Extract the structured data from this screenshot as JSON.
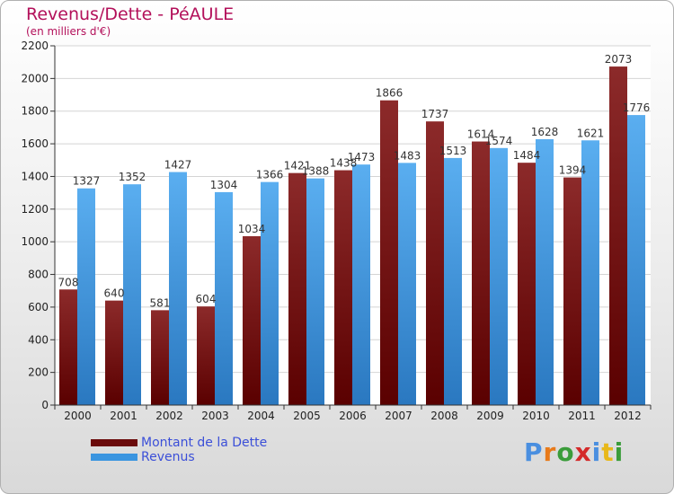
{
  "chart_data": {
    "type": "bar",
    "title": "Revenus/Dette - PéAULE",
    "subtitle": "(en milliers d'€)",
    "categories": [
      "2000",
      "2001",
      "2002",
      "2003",
      "2004",
      "2005",
      "2006",
      "2007",
      "2008",
      "2009",
      "2010",
      "2011",
      "2012"
    ],
    "series": [
      {
        "name": "Montant de la Dette",
        "color": "#7a1010",
        "values": [
          708,
          640,
          581,
          604,
          1034,
          1421,
          1438,
          1866,
          1737,
          1614,
          1484,
          1394,
          2073
        ]
      },
      {
        "name": "Revenus",
        "color": "#3a95e0",
        "values": [
          1327,
          1352,
          1427,
          1304,
          1366,
          1388,
          1473,
          1483,
          1513,
          1574,
          1628,
          1621,
          1776
        ]
      }
    ],
    "value_labels": {
      "Montant de la Dette": [
        "708",
        "640",
        "581",
        "604",
        "1034",
        "1421",
        "1438",
        "1866",
        "1737",
        "1614",
        "1484",
        "1394",
        "2073"
      ],
      "Revenus": [
        "1327",
        "1352",
        "1427",
        "1304",
        "1366",
        "1388",
        "1473",
        "1483",
        "1513",
        "1574",
        "1628",
        "1621",
        "1776"
      ]
    },
    "yticks": [
      "0",
      "200",
      "400",
      "600",
      "800",
      "1000",
      "1200",
      "1400",
      "1600",
      "1800",
      "2000",
      "2200"
    ],
    "ylim": [
      0,
      2200
    ],
    "grid": true,
    "legend_position": "bottom-left"
  },
  "logo": {
    "text": "Proxiti",
    "colors": [
      "#4a8fe0",
      "#e87a1a",
      "#3a9c3a",
      "#d42a2a",
      "#4a8fe0",
      "#e8b81a",
      "#3a9c3a"
    ]
  }
}
